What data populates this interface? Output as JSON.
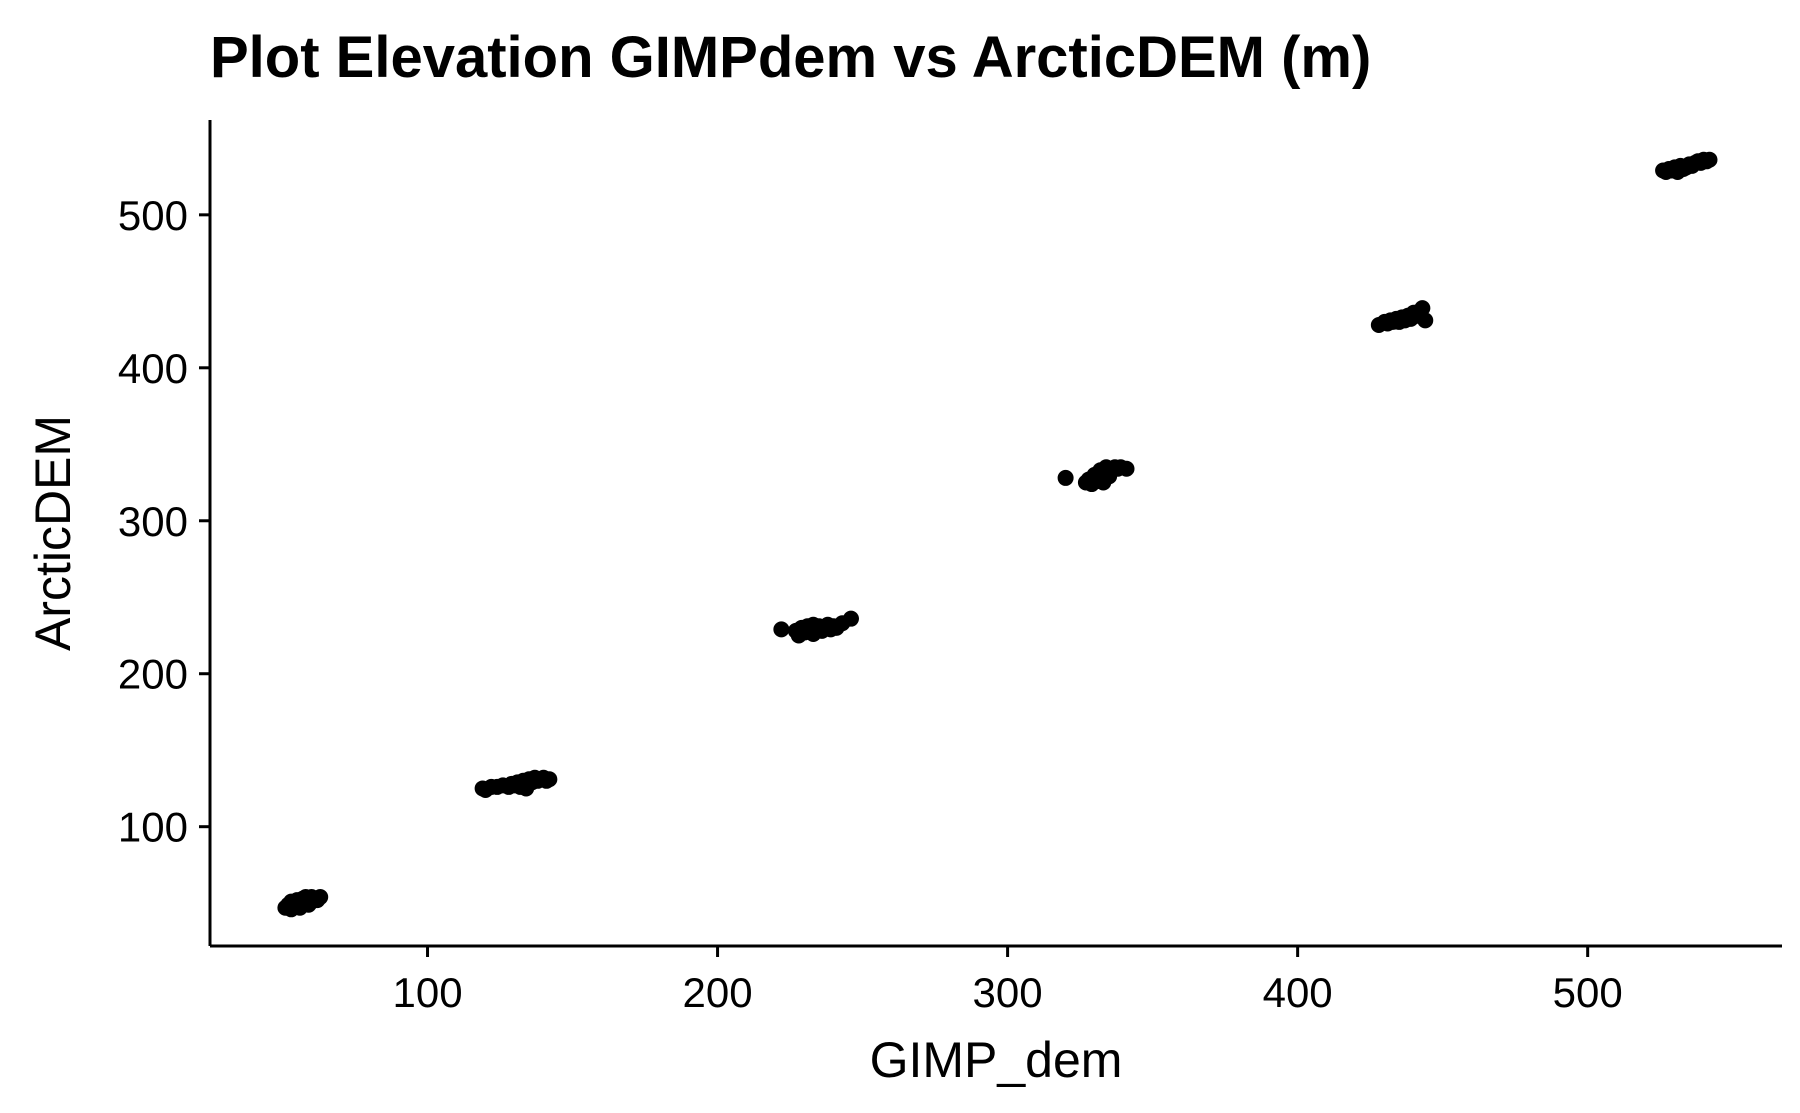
{
  "chart_data": {
    "type": "scatter",
    "title": "Plot Elevation GIMPdem vs ArcticDEM (m)",
    "xlabel": "GIMP_dem",
    "ylabel": "ArcticDEM",
    "xlim": [
      25,
      567
    ],
    "ylim": [
      22,
      562
    ],
    "x_ticks": [
      100,
      200,
      300,
      400,
      500
    ],
    "y_ticks": [
      100,
      200,
      300,
      400,
      500
    ],
    "grid": false,
    "legend": "none",
    "point_color": "#000000",
    "series": [
      {
        "points": [
          {
            "x": 51,
            "y": 47
          },
          {
            "x": 52,
            "y": 49
          },
          {
            "x": 53,
            "y": 51
          },
          {
            "x": 54,
            "y": 48
          },
          {
            "x": 55,
            "y": 50
          },
          {
            "x": 55,
            "y": 52
          },
          {
            "x": 56,
            "y": 49
          },
          {
            "x": 57,
            "y": 53
          },
          {
            "x": 57,
            "y": 51
          },
          {
            "x": 58,
            "y": 54
          },
          {
            "x": 58,
            "y": 50
          },
          {
            "x": 59,
            "y": 52
          },
          {
            "x": 60,
            "y": 54
          },
          {
            "x": 60,
            "y": 51
          },
          {
            "x": 61,
            "y": 53
          },
          {
            "x": 62,
            "y": 52
          },
          {
            "x": 63,
            "y": 54
          },
          {
            "x": 53,
            "y": 46
          },
          {
            "x": 56,
            "y": 47
          },
          {
            "x": 59,
            "y": 49
          },
          {
            "x": 119,
            "y": 125
          },
          {
            "x": 120,
            "y": 124
          },
          {
            "x": 122,
            "y": 126
          },
          {
            "x": 124,
            "y": 126
          },
          {
            "x": 126,
            "y": 127
          },
          {
            "x": 128,
            "y": 126
          },
          {
            "x": 129,
            "y": 128
          },
          {
            "x": 130,
            "y": 127
          },
          {
            "x": 131,
            "y": 129
          },
          {
            "x": 132,
            "y": 126
          },
          {
            "x": 133,
            "y": 130
          },
          {
            "x": 134,
            "y": 128
          },
          {
            "x": 134,
            "y": 125
          },
          {
            "x": 135,
            "y": 131
          },
          {
            "x": 136,
            "y": 129
          },
          {
            "x": 137,
            "y": 132
          },
          {
            "x": 138,
            "y": 130
          },
          {
            "x": 139,
            "y": 131
          },
          {
            "x": 140,
            "y": 132
          },
          {
            "x": 141,
            "y": 130
          },
          {
            "x": 142,
            "y": 131
          },
          {
            "x": 222,
            "y": 229
          },
          {
            "x": 227,
            "y": 228
          },
          {
            "x": 228,
            "y": 225
          },
          {
            "x": 229,
            "y": 230
          },
          {
            "x": 230,
            "y": 227
          },
          {
            "x": 231,
            "y": 231
          },
          {
            "x": 232,
            "y": 228
          },
          {
            "x": 233,
            "y": 232
          },
          {
            "x": 233,
            "y": 226
          },
          {
            "x": 234,
            "y": 229
          },
          {
            "x": 235,
            "y": 231
          },
          {
            "x": 236,
            "y": 228
          },
          {
            "x": 237,
            "y": 230
          },
          {
            "x": 238,
            "y": 232
          },
          {
            "x": 239,
            "y": 229
          },
          {
            "x": 240,
            "y": 231
          },
          {
            "x": 241,
            "y": 230
          },
          {
            "x": 243,
            "y": 233
          },
          {
            "x": 246,
            "y": 236
          },
          {
            "x": 320,
            "y": 328
          },
          {
            "x": 327,
            "y": 325
          },
          {
            "x": 328,
            "y": 327
          },
          {
            "x": 329,
            "y": 324
          },
          {
            "x": 330,
            "y": 330
          },
          {
            "x": 331,
            "y": 326
          },
          {
            "x": 332,
            "y": 333
          },
          {
            "x": 332,
            "y": 328
          },
          {
            "x": 333,
            "y": 325
          },
          {
            "x": 334,
            "y": 331
          },
          {
            "x": 334,
            "y": 335
          },
          {
            "x": 335,
            "y": 329
          },
          {
            "x": 336,
            "y": 333
          },
          {
            "x": 337,
            "y": 335
          },
          {
            "x": 338,
            "y": 334
          },
          {
            "x": 339,
            "y": 335
          },
          {
            "x": 341,
            "y": 334
          },
          {
            "x": 428,
            "y": 428
          },
          {
            "x": 430,
            "y": 430
          },
          {
            "x": 431,
            "y": 429
          },
          {
            "x": 432,
            "y": 431
          },
          {
            "x": 433,
            "y": 430
          },
          {
            "x": 434,
            "y": 432
          },
          {
            "x": 435,
            "y": 430
          },
          {
            "x": 436,
            "y": 433
          },
          {
            "x": 437,
            "y": 431
          },
          {
            "x": 438,
            "y": 434
          },
          {
            "x": 439,
            "y": 432
          },
          {
            "x": 440,
            "y": 436
          },
          {
            "x": 441,
            "y": 434
          },
          {
            "x": 442,
            "y": 437
          },
          {
            "x": 443,
            "y": 439
          },
          {
            "x": 444,
            "y": 431
          },
          {
            "x": 526,
            "y": 529
          },
          {
            "x": 527,
            "y": 528
          },
          {
            "x": 528,
            "y": 530
          },
          {
            "x": 529,
            "y": 529
          },
          {
            "x": 530,
            "y": 531
          },
          {
            "x": 531,
            "y": 528
          },
          {
            "x": 532,
            "y": 532
          },
          {
            "x": 533,
            "y": 530
          },
          {
            "x": 534,
            "y": 531
          },
          {
            "x": 535,
            "y": 533
          },
          {
            "x": 536,
            "y": 532
          },
          {
            "x": 537,
            "y": 534
          },
          {
            "x": 538,
            "y": 535
          },
          {
            "x": 539,
            "y": 534
          },
          {
            "x": 540,
            "y": 536
          },
          {
            "x": 541,
            "y": 535
          },
          {
            "x": 542,
            "y": 536
          }
        ]
      }
    ]
  }
}
